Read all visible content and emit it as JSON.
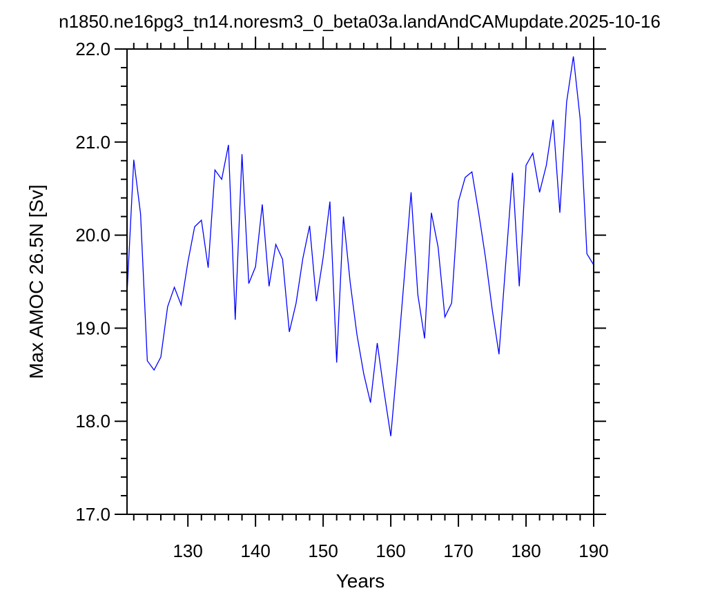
{
  "chart_data": {
    "type": "line",
    "title": "n1850.ne16pg3_tn14.noresm3_0_beta03a.landAndCAMupdate.2025-10-16",
    "xlabel": "Years",
    "ylabel": "Max AMOC 26.5N [Sv]",
    "xlim": [
      121,
      190
    ],
    "ylim": [
      17.0,
      22.0
    ],
    "xticks": [
      130,
      140,
      150,
      160,
      170,
      180,
      190
    ],
    "xtick_labels": [
      "130",
      "140",
      "150",
      "160",
      "170",
      "180",
      "190"
    ],
    "yticks": [
      17.0,
      18.0,
      19.0,
      20.0,
      21.0,
      22.0
    ],
    "ytick_labels": [
      "17.0",
      "18.0",
      "19.0",
      "20.0",
      "21.0",
      "22.0"
    ],
    "line_color": "#0000ff",
    "grid": false,
    "series": [
      {
        "x": [
          121,
          122,
          123,
          124,
          125,
          126,
          127,
          128,
          129,
          130,
          131,
          132,
          133,
          134,
          135,
          136,
          137,
          138,
          139,
          140,
          141,
          142,
          143,
          144,
          145,
          146,
          147,
          148,
          149,
          150,
          151,
          152,
          153,
          154,
          155,
          156,
          157,
          158,
          159,
          160,
          161,
          162,
          163,
          164,
          165,
          166,
          167,
          168,
          169,
          170,
          171,
          172,
          173,
          174,
          175,
          176,
          177,
          178,
          179,
          180,
          181,
          182,
          183,
          184,
          185,
          186,
          187,
          188,
          189,
          190
        ],
        "values": [
          19.37,
          20.81,
          20.23,
          18.65,
          18.55,
          18.69,
          19.23,
          19.44,
          19.25,
          19.71,
          20.09,
          20.16,
          19.65,
          20.7,
          20.6,
          20.97,
          19.09,
          20.87,
          19.48,
          19.66,
          20.33,
          19.45,
          19.9,
          19.74,
          18.96,
          19.27,
          19.75,
          20.1,
          19.29,
          19.76,
          20.36,
          18.63,
          20.2,
          19.49,
          18.93,
          18.51,
          18.2,
          18.84,
          18.32,
          17.84,
          18.66,
          19.55,
          20.46,
          19.36,
          18.89,
          20.24,
          19.87,
          19.12,
          19.27,
          20.36,
          20.62,
          20.68,
          20.24,
          19.76,
          19.2,
          18.72,
          19.7,
          20.67,
          19.45,
          20.75,
          20.88,
          20.46,
          20.75,
          21.24,
          20.24,
          21.43,
          21.92,
          21.25,
          19.8,
          19.68
        ]
      }
    ]
  }
}
